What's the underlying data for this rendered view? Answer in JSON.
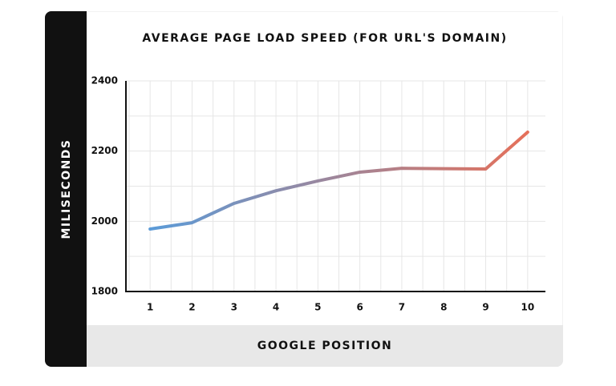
{
  "chart_data": {
    "type": "line",
    "title": "AVERAGE PAGE LOAD SPEED (FOR URL'S DOMAIN)",
    "x_label": "GOOGLE POSITION",
    "y_label": "MILISECONDS",
    "categories": [
      "1",
      "2",
      "3",
      "4",
      "5",
      "6",
      "7",
      "8",
      "9",
      "10"
    ],
    "values": [
      1978,
      1996,
      2051,
      2087,
      2115,
      2140,
      2151,
      2150,
      2149,
      2254
    ],
    "gradient": [
      "#5b9bd8",
      "#e5705a"
    ],
    "ylim": [
      1800,
      2400
    ],
    "yticks": [
      1800,
      2000,
      2200,
      2400
    ],
    "grid": true
  }
}
